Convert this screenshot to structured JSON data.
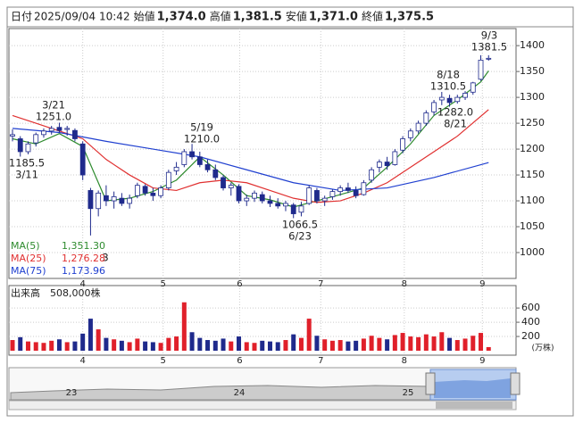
{
  "header": {
    "items": [
      {
        "label": "日付",
        "value": "2025/09/04 10:42"
      },
      {
        "label": "始値",
        "value": "1,374.0"
      },
      {
        "label": "高値",
        "value": "1,381.5"
      },
      {
        "label": "安値",
        "value": "1,371.0"
      },
      {
        "label": "終値",
        "value": "1,375.5"
      }
    ]
  },
  "chart_data": [
    {
      "type": "candlestick",
      "ylim": [
        950,
        1433
      ],
      "yticks": [
        1000,
        1050,
        1100,
        1150,
        1200,
        1250,
        1300,
        1350,
        1400
      ],
      "xlim": [
        -0.5,
        62
      ],
      "xticks": [
        {
          "value": 9,
          "label": "4"
        },
        {
          "value": 19.3,
          "label": "5"
        },
        {
          "value": 29.1,
          "label": "6"
        },
        {
          "value": 39.5,
          "label": "7"
        },
        {
          "value": 50.2,
          "label": "8"
        },
        {
          "value": 60.2,
          "label": "9"
        }
      ],
      "up_color": "#ffffff",
      "down_color": "#1f2a8c",
      "grid": true,
      "open": [
        1225,
        1220,
        1195,
        1212,
        1228,
        1235,
        1242,
        1238,
        1236,
        1210,
        1120,
        1085,
        1110,
        1100,
        1105,
        1095,
        1110,
        1128,
        1115,
        1110,
        1125,
        1158,
        1170,
        1195,
        1185,
        1170,
        1160,
        1145,
        1125,
        1128,
        1100,
        1105,
        1112,
        1100,
        1095,
        1090,
        1092,
        1078,
        1095,
        1120,
        1100,
        1108,
        1118,
        1125,
        1120,
        1112,
        1140,
        1165,
        1175,
        1170,
        1198,
        1222,
        1235,
        1250,
        1272,
        1295,
        1298,
        1292,
        1300,
        1310,
        1335,
        1374
      ],
      "high": [
        1238,
        1225,
        1215,
        1232,
        1240,
        1245,
        1251,
        1245,
        1240,
        1215,
        1125,
        1120,
        1130,
        1118,
        1115,
        1112,
        1135,
        1132,
        1125,
        1130,
        1160,
        1175,
        1200,
        1210,
        1195,
        1180,
        1170,
        1150,
        1135,
        1132,
        1112,
        1120,
        1118,
        1110,
        1105,
        1100,
        1096,
        1098,
        1130,
        1125,
        1110,
        1122,
        1130,
        1135,
        1128,
        1140,
        1165,
        1180,
        1185,
        1200,
        1225,
        1240,
        1255,
        1275,
        1295,
        1310.5,
        1305,
        1305,
        1312,
        1330,
        1381.5,
        1381.5
      ],
      "low": [
        1215,
        1185.5,
        1190,
        1205,
        1222,
        1228,
        1232,
        1226,
        1215,
        1140,
        1033,
        1070,
        1090,
        1085,
        1090,
        1085,
        1105,
        1110,
        1100,
        1105,
        1120,
        1150,
        1165,
        1180,
        1165,
        1155,
        1140,
        1120,
        1110,
        1095,
        1090,
        1098,
        1095,
        1088,
        1085,
        1080,
        1066.5,
        1070,
        1092,
        1095,
        1090,
        1102,
        1110,
        1115,
        1105,
        1110,
        1135,
        1155,
        1160,
        1168,
        1192,
        1215,
        1230,
        1245,
        1265,
        1285,
        1282,
        1288,
        1295,
        1305,
        1332,
        1371
      ],
      "close": [
        1228,
        1195,
        1210,
        1228,
        1235,
        1240,
        1236,
        1240,
        1220,
        1150,
        1085,
        1115,
        1100,
        1108,
        1095,
        1105,
        1130,
        1115,
        1110,
        1125,
        1155,
        1165,
        1195,
        1185,
        1170,
        1160,
        1145,
        1125,
        1130,
        1100,
        1105,
        1115,
        1100,
        1095,
        1090,
        1095,
        1075,
        1090,
        1125,
        1100,
        1105,
        1118,
        1125,
        1120,
        1110,
        1135,
        1160,
        1175,
        1168,
        1195,
        1220,
        1235,
        1250,
        1270,
        1290,
        1300,
        1290,
        1300,
        1308,
        1328,
        1372,
        1375.5
      ],
      "series": [
        {
          "name": "MA(5)",
          "color": "#2e8b2e",
          "value_label": "1,351.30",
          "x": [
            0,
            3,
            6,
            9,
            12,
            15,
            18,
            21,
            24,
            27,
            30,
            33,
            36,
            39,
            42,
            45,
            48,
            51,
            54,
            57,
            60,
            61
          ],
          "values": [
            1220,
            1210,
            1230,
            1205,
            1100,
            1105,
            1118,
            1140,
            1185,
            1150,
            1110,
            1102,
            1088,
            1100,
            1112,
            1125,
            1165,
            1210,
            1265,
            1295,
            1330,
            1351.3
          ]
        },
        {
          "name": "MA(25)",
          "color": "#e03030",
          "value_label": "1,276.28",
          "x": [
            0,
            3,
            6,
            9,
            12,
            15,
            18,
            21,
            24,
            27,
            30,
            33,
            36,
            39,
            42,
            45,
            48,
            51,
            54,
            57,
            61
          ],
          "values": [
            1265,
            1250,
            1235,
            1220,
            1180,
            1150,
            1125,
            1120,
            1135,
            1140,
            1135,
            1120,
            1105,
            1097,
            1100,
            1115,
            1135,
            1165,
            1195,
            1225,
            1276.28
          ]
        },
        {
          "name": "MA(75)",
          "color": "#2040d0",
          "value_label": "1,173.96",
          "x": [
            0,
            6,
            12,
            18,
            24,
            30,
            36,
            42,
            48,
            54,
            61
          ],
          "values": [
            1240,
            1232,
            1215,
            1200,
            1185,
            1160,
            1135,
            1120,
            1125,
            1145,
            1173.96
          ]
        }
      ],
      "annotations": [
        {
          "lines": [
            "3/21",
            "1251.0"
          ]
        },
        {
          "lines": [
            "1185.5",
            "3/11"
          ]
        },
        {
          "lines": [
            "5/19",
            "1210.0"
          ]
        },
        {
          "lines": [
            "1066.5",
            "6/23"
          ]
        },
        {
          "lines": [
            "8/18",
            "1310.5"
          ]
        },
        {
          "lines": [
            "1282.0",
            "8/21"
          ]
        },
        {
          "lines": [
            "9/3",
            "1381.5"
          ]
        },
        {
          "lines": [
            "3"
          ]
        }
      ]
    },
    {
      "type": "bar",
      "title": "出来高　508,000株",
      "unit": "(万株)",
      "ylim": [
        0,
        890
      ],
      "yticks": [
        200,
        400,
        600
      ],
      "up_color": "#e0202a",
      "down_color": "#1f2a8c",
      "values": [
        150,
        190,
        130,
        120,
        110,
        140,
        160,
        120,
        130,
        240,
        450,
        300,
        180,
        160,
        140,
        120,
        170,
        130,
        120,
        110,
        180,
        200,
        680,
        260,
        180,
        150,
        140,
        170,
        130,
        200,
        120,
        110,
        140,
        130,
        120,
        150,
        230,
        180,
        450,
        210,
        160,
        140,
        150,
        130,
        140,
        170,
        210,
        180,
        160,
        220,
        250,
        200,
        190,
        230,
        200,
        260,
        180,
        150,
        170,
        210,
        250,
        50.8
      ]
    },
    {
      "type": "navigator",
      "labels": [
        "23",
        "24",
        "25"
      ]
    }
  ]
}
